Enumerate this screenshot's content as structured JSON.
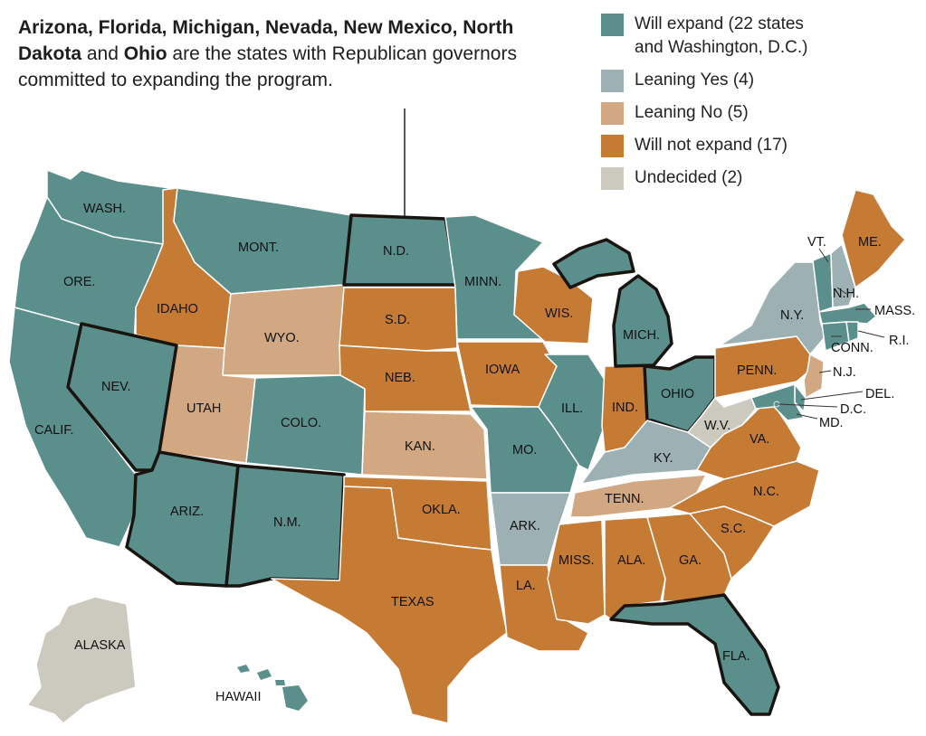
{
  "annotation": {
    "bold_1": "Arizona, Florida, Michigan, Nevada, New Mexico,",
    "bold_2": "North Dakota",
    "text_and": " and ",
    "bold_3": "Ohio",
    "text_rest": " are the states with Republican governors committed to expanding the program."
  },
  "legend": [
    {
      "label": "Will expand (22 states and Washington, D.C.)",
      "color": "#5b8f8c"
    },
    {
      "label": "Leaning Yes (4)",
      "color": "#9db0b3"
    },
    {
      "label": "Leaning No (5)",
      "color": "#d1a882"
    },
    {
      "label": "Will not expand (17)",
      "color": "#c67b35"
    },
    {
      "label": "Undecided (2)",
      "color": "#ccc9bf"
    }
  ],
  "states": {
    "wa": "WASH.",
    "or": "ORE.",
    "ca": "CALIF.",
    "nv": "NEV.",
    "id": "IDAHO",
    "mt": "MONT.",
    "wy": "WYO.",
    "ut": "UTAH",
    "co": "COLO.",
    "az": "ARIZ.",
    "nm": "N.M.",
    "nd": "N.D.",
    "sd": "S.D.",
    "ne": "NEB.",
    "ks": "KAN.",
    "ok": "OKLA.",
    "tx": "TEXAS",
    "mn": "MINN.",
    "ia": "IOWA",
    "mo": "MO.",
    "ar": "ARK.",
    "la": "LA.",
    "wi": "WIS.",
    "il": "ILL.",
    "mi": "MICH.",
    "in": "IND.",
    "oh": "OHIO",
    "ky": "KY.",
    "tn": "TENN.",
    "ms": "MISS.",
    "al": "ALA.",
    "ga": "GA.",
    "fl": "FLA.",
    "sc": "S.C.",
    "nc": "N.C.",
    "va": "VA.",
    "wv": "W.V.",
    "pa": "PENN.",
    "ny": "N.Y.",
    "vt": "VT.",
    "nh": "N.H.",
    "me": "ME.",
    "ma": "MASS.",
    "ct": "CONN.",
    "ri": "R.I.",
    "nj": "N.J.",
    "de": "DEL.",
    "dc": "D.C.",
    "md": "MD.",
    "ak": "ALASKA",
    "hi": "HAWAII"
  },
  "colors": {
    "expand": "#5b8f8c",
    "leaning_yes": "#9db0b3",
    "leaning_no": "#d1a882",
    "no": "#c67b35",
    "undecided": "#ccc9bf"
  }
}
